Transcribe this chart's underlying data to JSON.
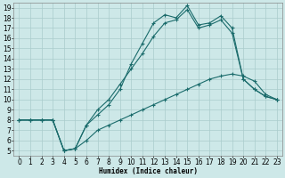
{
  "xlabel": "Humidex (Indice chaleur)",
  "bg_color": "#cde8e8",
  "grid_color": "#aacccc",
  "line_color": "#1a6b6b",
  "xlim": [
    -0.5,
    23.5
  ],
  "ylim": [
    4.5,
    19.5
  ],
  "xticks": [
    0,
    1,
    2,
    3,
    4,
    5,
    6,
    7,
    8,
    9,
    10,
    11,
    12,
    13,
    14,
    15,
    16,
    17,
    18,
    19,
    20,
    21,
    22,
    23
  ],
  "yticks": [
    5,
    6,
    7,
    8,
    9,
    10,
    11,
    12,
    13,
    14,
    15,
    16,
    17,
    18,
    19
  ],
  "line1_x": [
    0,
    1,
    2,
    3,
    4,
    5,
    6,
    7,
    8,
    9,
    10,
    11,
    12,
    13,
    14,
    15,
    16,
    17,
    18,
    19,
    20,
    21,
    22,
    23
  ],
  "line1_y": [
    8.0,
    8.0,
    8.0,
    8.0,
    5.0,
    5.2,
    6.0,
    7.0,
    7.5,
    8.0,
    8.5,
    9.0,
    9.5,
    10.0,
    10.5,
    11.0,
    11.5,
    12.0,
    12.3,
    12.5,
    12.3,
    11.8,
    10.5,
    10.0
  ],
  "line2_x": [
    0,
    1,
    2,
    3,
    4,
    5,
    6,
    7,
    8,
    9,
    10,
    11,
    12,
    13,
    14,
    15,
    16,
    17,
    18,
    19,
    20,
    21,
    22,
    23
  ],
  "line2_y": [
    8.0,
    8.0,
    8.0,
    8.0,
    5.0,
    5.2,
    7.5,
    9.0,
    10.0,
    11.5,
    13.0,
    14.5,
    16.2,
    17.5,
    17.8,
    18.8,
    17.0,
    17.3,
    17.8,
    16.5,
    12.0,
    11.0,
    10.3,
    10.0
  ],
  "line3_x": [
    0,
    1,
    2,
    3,
    4,
    5,
    6,
    7,
    8,
    9,
    10,
    11,
    12,
    13,
    14,
    15,
    16,
    17,
    18,
    19,
    20,
    21,
    22,
    23
  ],
  "line3_y": [
    8.0,
    8.0,
    8.0,
    8.0,
    5.0,
    5.2,
    7.5,
    8.5,
    9.5,
    11.0,
    13.5,
    15.5,
    17.5,
    18.3,
    18.0,
    19.2,
    17.3,
    17.5,
    18.2,
    17.0,
    12.0,
    11.0,
    10.3,
    10.0
  ],
  "font_size": 5.5
}
